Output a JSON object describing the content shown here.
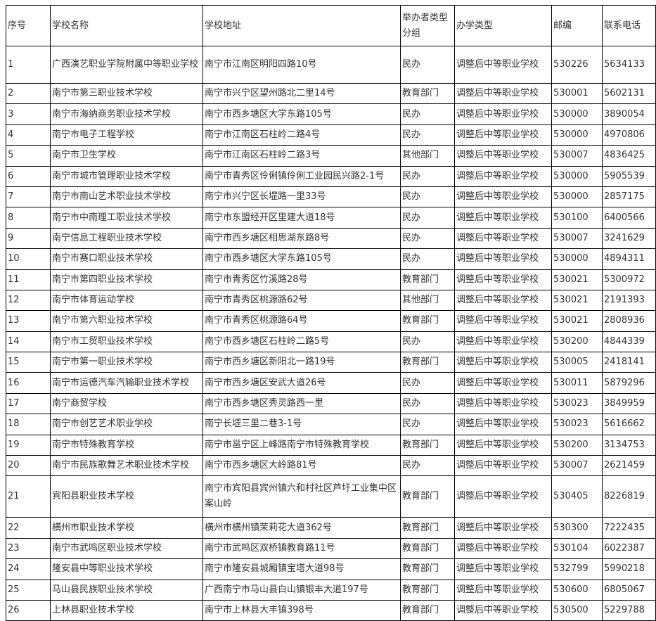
{
  "table": {
    "headers": [
      "序号",
      "学校名称",
      "学校地址",
      "举办者类型分组",
      "办学类型",
      "邮编",
      "联系电话"
    ],
    "rows": [
      [
        "1",
        "广西演艺职业学院附属中等职业学校",
        "南宁市江南区明阳四路10号",
        "民办",
        "调整后中等职业学校",
        "530226",
        "5634133"
      ],
      [
        "2",
        "南宁市第三职业技术学校",
        "南宁市兴宁区望州路北二里14号",
        "教育部门",
        "调整后中等职业学校",
        "530001",
        "5602131"
      ],
      [
        "3",
        "南宁市海纳商务职业技术学校",
        "南宁市西乡塘区大学东路105号",
        "民办",
        "调整后中等职业学校",
        "530000",
        "3890054"
      ],
      [
        "4",
        "南宁市电子工程学校",
        "南宁市江南区石柱岭二路4号",
        "民办",
        "调整后中等职业学校",
        "530000",
        "4970806"
      ],
      [
        "5",
        "南宁市卫生学校",
        "南宁市江南区石柱岭二路3号",
        "其他部门",
        "调整后中等职业学校",
        "530007",
        "4836425"
      ],
      [
        "6",
        "南宁市城市管理职业技术学校",
        "南宁市青秀区伶俐镇伶俐工业园民兴路2-1号",
        "民办",
        "调整后中等职业学校",
        "530000",
        "5905539"
      ],
      [
        "7",
        "南宁市南山艺术职业技术学校",
        "南宁市兴宁区长堽路一里33号",
        "民办",
        "调整后中等职业学校",
        "530000",
        "2857175"
      ],
      [
        "8",
        "南宁市中南理工职业技术学校",
        "南宁市东盟经开区里建大道18号",
        "民办",
        "调整后中等职业学校",
        "530100",
        "6400566"
      ],
      [
        "9",
        "南宁信息工程职业技术学校",
        "南宁市西乡塘区相思湖东路8号",
        "民办",
        "调整后中等职业学校",
        "530007",
        "3241629"
      ],
      [
        "10",
        "南宁市赛口职业技术学校",
        "南宁市西乡塘区大学东路105号",
        "民办",
        "调整后中等职业学校",
        "530000",
        "4894311"
      ],
      [
        "11",
        "南宁市第四职业技术学校",
        "南宁市青秀区竹溪路28号",
        "教育部门",
        "调整后中等职业学校",
        "530021",
        "5300972"
      ],
      [
        "12",
        "南宁市体育运动学校",
        "南宁市青秀区桃源路62号",
        "其他部门",
        "调整后中等职业学校",
        "530021",
        "2191393"
      ],
      [
        "13",
        "南宁市第六职业技术学校",
        "南宁市青秀区桃源路64号",
        "教育部门",
        "调整后中等职业学校",
        "530021",
        "2808936"
      ],
      [
        "14",
        "南宁市工贸职业技术学校",
        "南宁市西乡塘区石柱岭二路5号",
        "民办",
        "调整后中等职业学校",
        "530200",
        "4844339"
      ],
      [
        "15",
        "南宁市第一职业技术学校",
        "南宁市西乡塘区新阳北一路19号",
        "教育部门",
        "调整后中等职业学校",
        "530005",
        "2418141"
      ],
      [
        "16",
        "南宁市运德汽车汽输职业技术学校",
        "南宁市西乡塘区安武大道26号",
        "民办",
        "调整后中等职业学校",
        "530011",
        "5879296"
      ],
      [
        "17",
        "南宁商贸学校",
        "南宁市西乡塘区秀灵路西一里",
        "民办",
        "调整后中等职业学校",
        "530023",
        "3849959"
      ],
      [
        "18",
        "南宁市创艺艺术职业学校",
        "南宁长堽三里二巷3-1号",
        "民办",
        "调整后中等职业学校",
        "530023",
        "5616662"
      ],
      [
        "19",
        "南宁市特殊教育学校",
        "南宁市邕宁区上峰路南宁市特殊教育学校",
        "教育部门",
        "调整后中等职业学校",
        "530200",
        "3134753"
      ],
      [
        "20",
        "南宁市民族歌舞艺术职业技术学校",
        "南宁市西乡塘区大岭路81号",
        "民办",
        "调整后中等职业学校",
        "530007",
        "2621459"
      ],
      [
        "21",
        "宾阳县职业技术学校",
        "南宁市宾阳县宾州镇六和村社区芦圩工业集中区案山岭",
        "教育部门",
        "调整后中等职业学校",
        "530405",
        "8226819"
      ],
      [
        "22",
        "横州市职业技术学校",
        "横州市横州镇茉莉花大道362号",
        "教育部门",
        "调整后中等职业学校",
        "530300",
        "7222435"
      ],
      [
        "23",
        "南宁市武鸣区职业技术学校",
        "南宁市武鸣区双桥镇教育路11号",
        "教育部门",
        "调整后中等职业学校",
        "530104",
        "6022387"
      ],
      [
        "24",
        "隆安县中等职业技术学校",
        "南宁市隆安县城厢镇宝塔大道98号",
        "教育部门",
        "调整后中等职业学校",
        "532799",
        "5990218"
      ],
      [
        "25",
        "马山县民族职业技术学校",
        "广西南宁市马山县白山镇银丰大道197号",
        "教育部门",
        "调整后中等职业学校",
        "530600",
        "6805067"
      ],
      [
        "26",
        "上林县职业技术学校",
        "南宁市上林县大丰镇398号",
        "教育部门",
        "调整后中等职业学校",
        "530500",
        "5229788"
      ]
    ]
  }
}
